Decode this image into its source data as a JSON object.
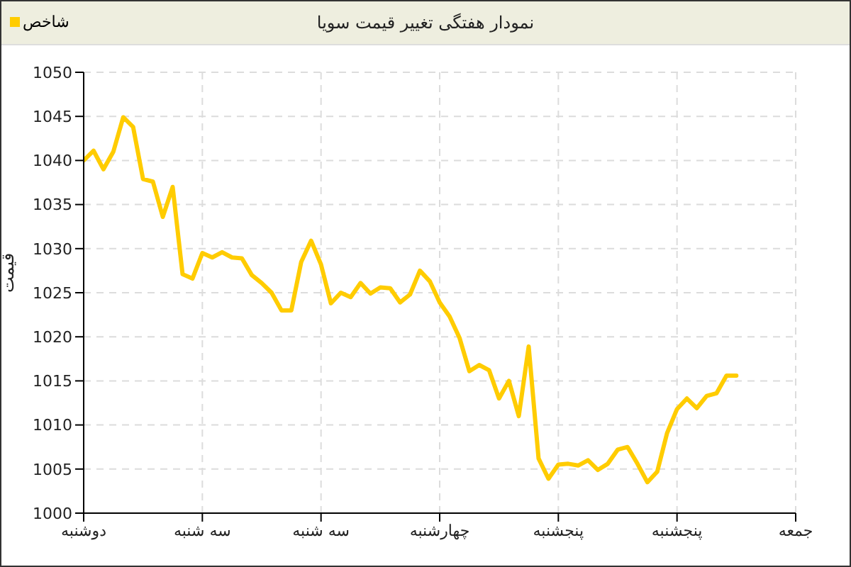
{
  "chart_data": {
    "type": "line",
    "title": "نمودار هفتگی تغییر قیمت سویا",
    "ylabel": "قیمت",
    "categories": [
      "دوشنبه",
      null,
      null,
      null,
      null,
      null,
      null,
      null,
      null,
      null,
      null,
      null,
      "سه شنبه",
      null,
      null,
      null,
      null,
      null,
      null,
      null,
      null,
      null,
      null,
      null,
      "سه شنبه",
      null,
      null,
      null,
      null,
      null,
      null,
      null,
      null,
      null,
      null,
      null,
      "چهارشنبه",
      null,
      null,
      null,
      null,
      null,
      null,
      null,
      null,
      null,
      null,
      null,
      "پنجشنبه",
      null,
      null,
      null,
      null,
      null,
      null,
      null,
      null,
      null,
      null,
      null,
      "پنجشنبه",
      null,
      null,
      null,
      null,
      null,
      null,
      null,
      null,
      null,
      null,
      null,
      "جمعه"
    ],
    "series": [
      {
        "name": "شاخص",
        "color": "#ffcc00",
        "values": [
          1040,
          1041.1,
          1039,
          1041,
          1044.9,
          1043.8,
          1037.9,
          1037.6,
          1033.6,
          1037,
          1027.1,
          1026.6,
          1029.5,
          1029,
          1029.6,
          1029,
          1028.9,
          1027,
          1026.1,
          1025,
          1023,
          1023,
          1028.5,
          1030.9,
          1028.2,
          1023.8,
          1025,
          1024.5,
          1026.1,
          1024.9,
          1025.6,
          1025.5,
          1023.9,
          1024.8,
          1027.5,
          1026.3,
          1023.9,
          1022.3,
          1019.9,
          1016.1,
          1016.8,
          1016.2,
          1013,
          1015,
          1011,
          1018.9,
          1006.2,
          1003.9,
          1005.5,
          1005.6,
          1005.4,
          1006,
          1004.9,
          1005.6,
          1007.2,
          1007.5,
          1005.6,
          1003.5,
          1004.7,
          1009.1,
          1011.8,
          1013,
          1011.9,
          1013.3,
          1013.6,
          1015.6,
          1015.6,
          null,
          null,
          null,
          null,
          null,
          null
        ]
      }
    ],
    "ylim": [
      1000,
      1050
    ],
    "yticks": [
      1000,
      1005,
      1010,
      1015,
      1020,
      1025,
      1030,
      1035,
      1040,
      1045,
      1050
    ],
    "grid": true,
    "legend": "top left",
    "marker": "none",
    "line_style": "solid"
  }
}
